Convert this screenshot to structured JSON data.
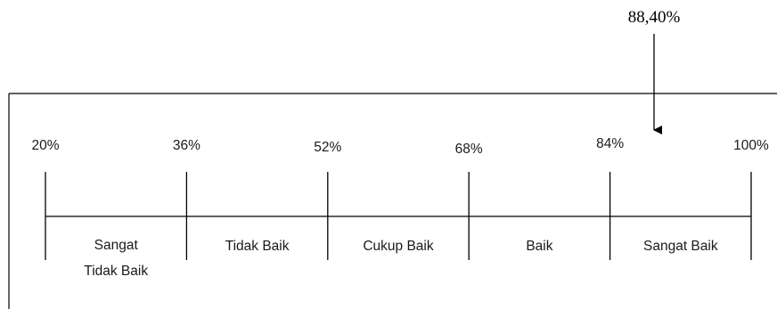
{
  "marker": {
    "value_label": "88,40%",
    "value": 88.4
  },
  "scale": {
    "min": 20,
    "max": 100,
    "ticks": [
      {
        "value": 20,
        "label": "20%"
      },
      {
        "value": 36,
        "label": "36%"
      },
      {
        "value": 52,
        "label": "52%"
      },
      {
        "value": 68,
        "label": "68%"
      },
      {
        "value": 84,
        "label": "84%"
      },
      {
        "value": 100,
        "label": "100%"
      }
    ],
    "categories": [
      {
        "label_lines": [
          "Sangat",
          "Tidak Baik"
        ],
        "from": 20,
        "to": 36
      },
      {
        "label_lines": [
          "Tidak Baik"
        ],
        "from": 36,
        "to": 52
      },
      {
        "label_lines": [
          "Cukup Baik"
        ],
        "from": 52,
        "to": 68
      },
      {
        "label_lines": [
          "Baik"
        ],
        "from": 68,
        "to": 84
      },
      {
        "label_lines": [
          "Sangat Baik"
        ],
        "from": 84,
        "to": 100
      }
    ]
  }
}
